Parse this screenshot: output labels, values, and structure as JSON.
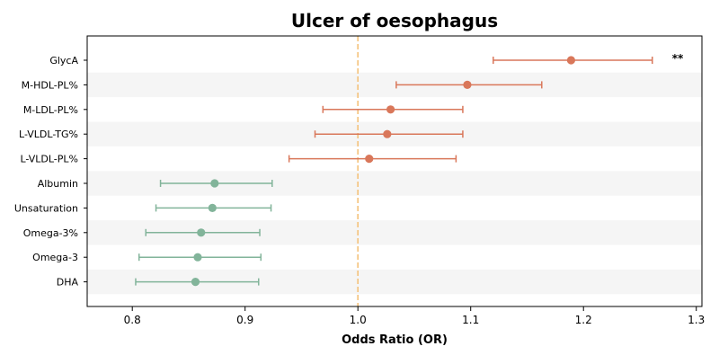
{
  "chart_data": {
    "type": "forest",
    "title": "Ulcer of oesophagus",
    "xlabel": "Odds Ratio (OR)",
    "xlim": [
      0.76,
      1.305
    ],
    "xticks": [
      0.8,
      0.9,
      1.0,
      1.1,
      1.2,
      1.3
    ],
    "xtick_labels": [
      "0.8",
      "0.9",
      "1.0",
      "1.1",
      "1.2",
      "1.3"
    ],
    "reference_line": 1.0,
    "reference_color": "#f5c27a",
    "risk_color": "#d9775a",
    "protective_color": "#82b49a",
    "stripe_color": "#f5f5f5",
    "grid": false,
    "rows": [
      {
        "label": "GlycA",
        "or": 1.189,
        "lo": 1.12,
        "hi": 1.261,
        "sig": "**"
      },
      {
        "label": "M-HDL-PL%",
        "or": 1.097,
        "lo": 1.034,
        "hi": 1.163,
        "sig": ""
      },
      {
        "label": "M-LDL-PL%",
        "or": 1.029,
        "lo": 0.969,
        "hi": 1.093,
        "sig": ""
      },
      {
        "label": "L-VLDL-TG%",
        "or": 1.026,
        "lo": 0.962,
        "hi": 1.093,
        "sig": ""
      },
      {
        "label": "L-VLDL-PL%",
        "or": 1.01,
        "lo": 0.939,
        "hi": 1.087,
        "sig": ""
      },
      {
        "label": "Albumin",
        "or": 0.873,
        "lo": 0.825,
        "hi": 0.924,
        "sig": ""
      },
      {
        "label": "Unsaturation",
        "or": 0.871,
        "lo": 0.821,
        "hi": 0.923,
        "sig": ""
      },
      {
        "label": "Omega-3%",
        "or": 0.861,
        "lo": 0.812,
        "hi": 0.913,
        "sig": ""
      },
      {
        "label": "Omega-3",
        "or": 0.858,
        "lo": 0.806,
        "hi": 0.914,
        "sig": ""
      },
      {
        "label": "DHA",
        "or": 0.856,
        "lo": 0.803,
        "hi": 0.912,
        "sig": ""
      }
    ]
  }
}
